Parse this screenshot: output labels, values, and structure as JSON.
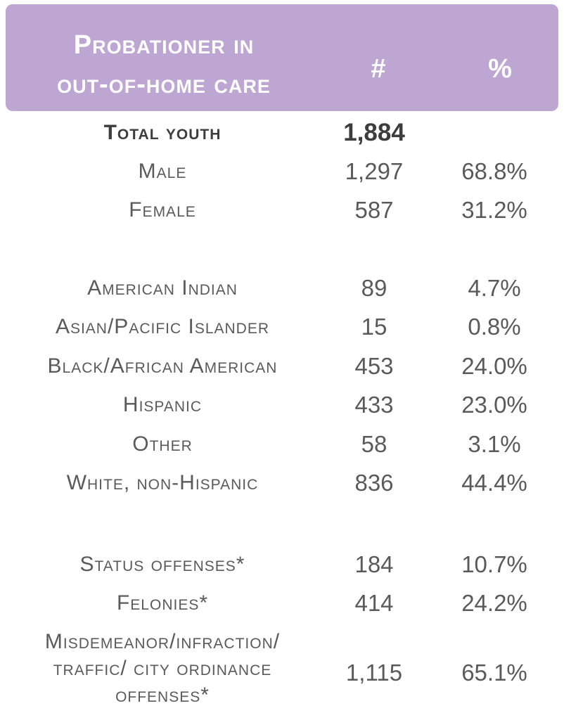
{
  "header": {
    "label_line1": "Probationer in",
    "label_line2": "out-of-home care",
    "count_header": "#",
    "percent_header": "%"
  },
  "total": {
    "label": "Total youth",
    "count": "1,884",
    "percent": ""
  },
  "gender": [
    {
      "label": "Male",
      "count": "1,297",
      "percent": "68.8%"
    },
    {
      "label": "Female",
      "count": "587",
      "percent": "31.2%"
    }
  ],
  "race": [
    {
      "label": "American Indian",
      "count": "89",
      "percent": "4.7%"
    },
    {
      "label": "Asian/Pacific Islander",
      "count": "15",
      "percent": "0.8%"
    },
    {
      "label": "Black/African American",
      "count": "453",
      "percent": "24.0%"
    },
    {
      "label": "Hispanic",
      "count": "433",
      "percent": "23.0%"
    },
    {
      "label": "Other",
      "count": "58",
      "percent": "3.1%"
    },
    {
      "label": "White, non-Hispanic",
      "count": "836",
      "percent": "44.4%"
    }
  ],
  "offenses": [
    {
      "label": "Status offenses*",
      "count": "184",
      "percent": "10.7%"
    },
    {
      "label": "Felonies*",
      "count": "414",
      "percent": "24.2%"
    }
  ],
  "misdemeanor": {
    "label_line1": "Misdemeanor/infraction/",
    "label_line2": "traffic/ city ordinance",
    "label_line3": "offenses*",
    "count": "1,115",
    "percent": "65.1%"
  },
  "colors": {
    "header_bg": "#bda6d2",
    "header_text": "#ffffff",
    "body_text": "#5a5a5a",
    "total_text": "#3d3d3d"
  }
}
